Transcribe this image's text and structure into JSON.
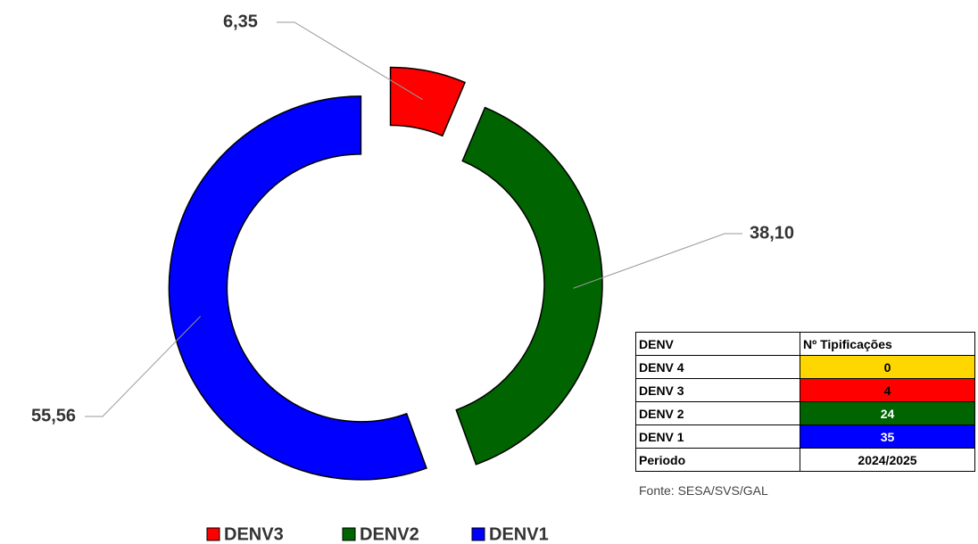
{
  "chart_data": {
    "type": "pie",
    "donut": true,
    "categories": [
      "DENV3",
      "DENV2",
      "DENV1"
    ],
    "values": [
      6.35,
      38.1,
      55.56
    ],
    "value_labels": [
      "6,35",
      "38,10",
      "55,56"
    ],
    "colors": [
      "#ff0000",
      "#006400",
      "#0000ff"
    ],
    "legend": "bottom"
  },
  "table": {
    "header": [
      "DENV",
      "Nº Tipificações"
    ],
    "rows": [
      [
        "DENV 4",
        0
      ],
      [
        "DENV 3",
        4
      ],
      [
        "DENV 2",
        24
      ],
      [
        "DENV 1",
        35
      ],
      [
        "Periodo",
        "2024/2025"
      ]
    ],
    "row_colors": [
      "#ffd700",
      "#ff0000",
      "#006400",
      "#0000ff",
      "#ffffff"
    ],
    "text_colors": [
      "#000000",
      "#000000",
      "#ffffff",
      "#ffffff",
      "#000000"
    ]
  },
  "source": "Fonte: SESA/SVS/GAL"
}
